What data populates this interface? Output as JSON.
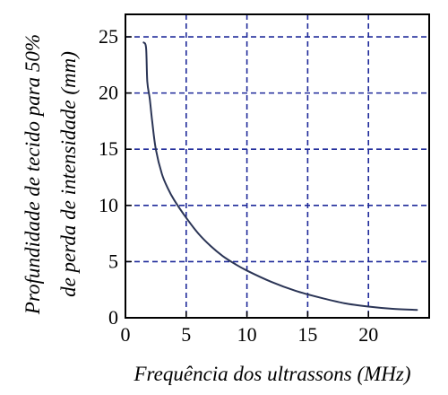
{
  "chart_data": {
    "type": "line",
    "xlabel": "Frequência dos ultrassons (MHz)",
    "ylabel_line1": "Profundidade de tecido para 50%",
    "ylabel_line2": "de perda de intensidade (mm)",
    "xlim": [
      0,
      25
    ],
    "ylim": [
      0,
      27
    ],
    "x_ticks": [
      0,
      5,
      10,
      15,
      20
    ],
    "y_ticks": [
      0,
      5,
      10,
      15,
      20,
      25
    ],
    "x_tick_labels": [
      "0",
      "5",
      "10",
      "15",
      "20"
    ],
    "y_tick_labels": [
      "0",
      "5",
      "10",
      "15",
      "20",
      "25"
    ],
    "grid": true,
    "grid_style": "dashed",
    "colors": {
      "line": "#2b3556",
      "grid": "#1f2a9a",
      "axes": "#000000"
    },
    "series": [
      {
        "x": [
          1.5,
          1.7,
          1.8,
          2.0,
          2.2,
          2.5,
          3.0,
          3.5,
          4.0,
          5.0,
          6.0,
          7.0,
          8.0,
          9.0,
          10.0,
          12.0,
          14.0,
          16.0,
          18.0,
          20.0,
          22.0,
          24.0
        ],
        "y": [
          24.5,
          24.0,
          21.0,
          19.5,
          17.5,
          15.0,
          12.8,
          11.5,
          10.5,
          8.9,
          7.5,
          6.4,
          5.5,
          4.8,
          4.2,
          3.2,
          2.4,
          1.8,
          1.3,
          1.0,
          0.8,
          0.7
        ]
      }
    ]
  }
}
